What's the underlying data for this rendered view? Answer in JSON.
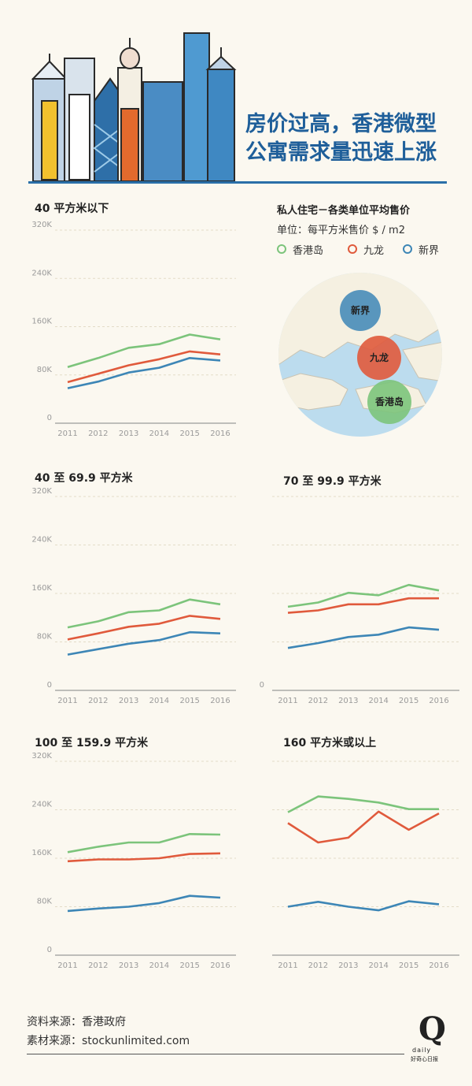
{
  "headline": {
    "line1": "房价过高，香港微型",
    "line2": "公寓需求量迅速上涨"
  },
  "colors": {
    "hongkong_island": "#7cc47b",
    "kowloon": "#e05a3c",
    "new_territories": "#3d86b6",
    "title_blue": "#1f5f9a"
  },
  "legend": {
    "title": "私人住宅－各类单位平均售价",
    "unit": "单位：每平方米售价 $ / m2",
    "items": [
      "香港岛",
      "九龙",
      "新界"
    ]
  },
  "map": {
    "labels": [
      "新界",
      "九龙",
      "香港岛"
    ]
  },
  "chart_data": [
    {
      "type": "line",
      "title": "40 平方米以下",
      "x": [
        "2011",
        "2012",
        "2013",
        "2014",
        "2015",
        "2016"
      ],
      "yticks": [
        "0",
        "80K",
        "160K",
        "240K",
        "320K"
      ],
      "ylim": [
        0,
        320000
      ],
      "grid": true,
      "series": [
        {
          "name": "香港岛",
          "values": [
            93000,
            108000,
            125000,
            131000,
            147000,
            139000
          ]
        },
        {
          "name": "九龙",
          "values": [
            68000,
            82000,
            96000,
            106000,
            119000,
            114000
          ]
        },
        {
          "name": "新界",
          "values": [
            58000,
            69000,
            84000,
            92000,
            108000,
            104000
          ]
        }
      ]
    },
    {
      "type": "line",
      "title": "40 至 69.9 平方米",
      "x": [
        "2011",
        "2012",
        "2013",
        "2014",
        "2015",
        "2016"
      ],
      "yticks": [
        "0",
        "80K",
        "160K",
        "240K",
        "320K"
      ],
      "ylim": [
        0,
        320000
      ],
      "grid": true,
      "series": [
        {
          "name": "香港岛",
          "values": [
            104000,
            114000,
            129000,
            132000,
            150000,
            142000
          ]
        },
        {
          "name": "九龙",
          "values": [
            84000,
            94000,
            105000,
            110000,
            123000,
            118000
          ]
        },
        {
          "name": "新界",
          "values": [
            59000,
            68000,
            77000,
            83000,
            96000,
            94000
          ]
        }
      ]
    },
    {
      "type": "line",
      "title": "70 至 99.9 平方米",
      "x": [
        "2011",
        "2012",
        "2013",
        "2014",
        "2015",
        "2016"
      ],
      "yticks": [
        "0"
      ],
      "ylim": [
        0,
        320000
      ],
      "grid": true,
      "series": [
        {
          "name": "香港岛",
          "values": [
            138000,
            145000,
            161000,
            157000,
            174000,
            165000
          ]
        },
        {
          "name": "九龙",
          "values": [
            128000,
            132000,
            142000,
            142000,
            152000,
            152000
          ]
        },
        {
          "name": "新界",
          "values": [
            70000,
            78000,
            88000,
            92000,
            104000,
            100000
          ]
        }
      ]
    },
    {
      "type": "line",
      "title": "100 至 159.9 平方米",
      "x": [
        "2011",
        "2012",
        "2013",
        "2014",
        "2015",
        "2016"
      ],
      "yticks": [
        "0",
        "80K",
        "160K",
        "240K",
        "320K"
      ],
      "ylim": [
        0,
        320000
      ],
      "grid": true,
      "series": [
        {
          "name": "香港岛",
          "values": [
            170000,
            179000,
            186000,
            186000,
            200000,
            199000
          ]
        },
        {
          "name": "九龙",
          "values": [
            155000,
            158000,
            158000,
            160000,
            167000,
            168000
          ]
        },
        {
          "name": "新界",
          "values": [
            73000,
            77000,
            80000,
            86000,
            98000,
            95000
          ]
        }
      ]
    },
    {
      "type": "line",
      "title": "160 平方米或以上",
      "x": [
        "2011",
        "2012",
        "2013",
        "2014",
        "2015",
        "2016"
      ],
      "yticks": [],
      "ylim": [
        0,
        320000
      ],
      "grid": true,
      "series": [
        {
          "name": "香港岛",
          "values": [
            236000,
            262000,
            258000,
            252000,
            241000,
            241000
          ]
        },
        {
          "name": "九龙",
          "values": [
            218000,
            186000,
            194000,
            237000,
            207000,
            234000
          ]
        },
        {
          "name": "新界",
          "values": [
            80000,
            88000,
            80000,
            74000,
            89000,
            84000
          ]
        }
      ]
    }
  ],
  "footer": {
    "source": "资料来源：香港政府",
    "material": "素材来源：stockunlimited.com",
    "logo_mark": "Q",
    "logo_sub": "daily",
    "logo_cn": "好奇心日报"
  }
}
